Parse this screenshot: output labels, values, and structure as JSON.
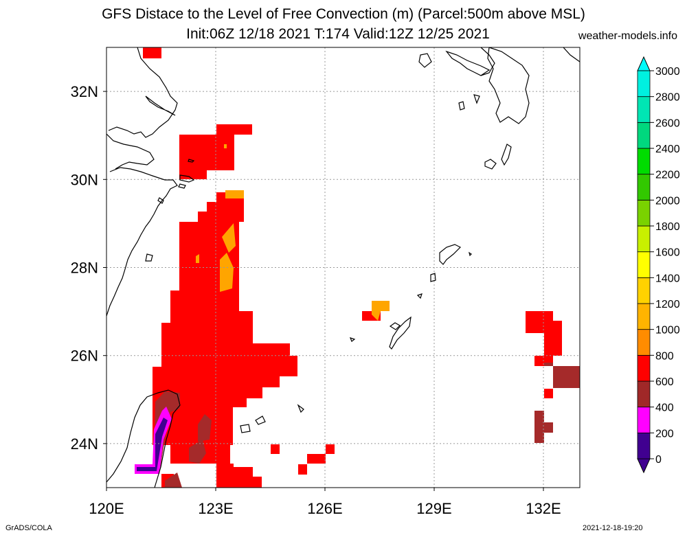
{
  "header": {
    "title_line1": "GFS Distace to the Level of Free Convection (m) (Parcel:500m above MSL)",
    "title_line2": "Init:06Z 12/18 2021 T:174 Valid:12Z 12/25 2021",
    "site": "weather-models.info"
  },
  "footer": {
    "left": "GrADS/COLA",
    "right": "2021-12-18-19:20"
  },
  "map": {
    "lon_range": [
      120,
      133
    ],
    "lat_range": [
      23,
      33
    ],
    "lon_ticks": [
      {
        "value": 120,
        "label": "120E"
      },
      {
        "value": 123,
        "label": "123E"
      },
      {
        "value": 126,
        "label": "126E"
      },
      {
        "value": 129,
        "label": "129E"
      },
      {
        "value": 132,
        "label": "132E"
      }
    ],
    "lat_ticks": [
      {
        "value": 24,
        "label": "24N"
      },
      {
        "value": 26,
        "label": "26N"
      },
      {
        "value": 28,
        "label": "28N"
      },
      {
        "value": 30,
        "label": "30N"
      },
      {
        "value": 32,
        "label": "32N"
      }
    ],
    "coastline_color": "#000000",
    "grid": true
  },
  "colorbar": {
    "labels": [
      "0",
      "200",
      "400",
      "600",
      "800",
      "1000",
      "1200",
      "1400",
      "1600",
      "1800",
      "2000",
      "2200",
      "2400",
      "2600",
      "2800",
      "3000"
    ],
    "colors": [
      "#400090",
      "#ff00ff",
      "#a02828",
      "#ff0000",
      "#ff8c00",
      "#ffb400",
      "#ffd200",
      "#ffff00",
      "#c8f000",
      "#7ad200",
      "#32c800",
      "#00dc00",
      "#00d87e",
      "#00e6b4",
      "#00f0e0",
      "#00fafa"
    ],
    "below_color": "#400090",
    "above_color": "#00fafa"
  }
}
